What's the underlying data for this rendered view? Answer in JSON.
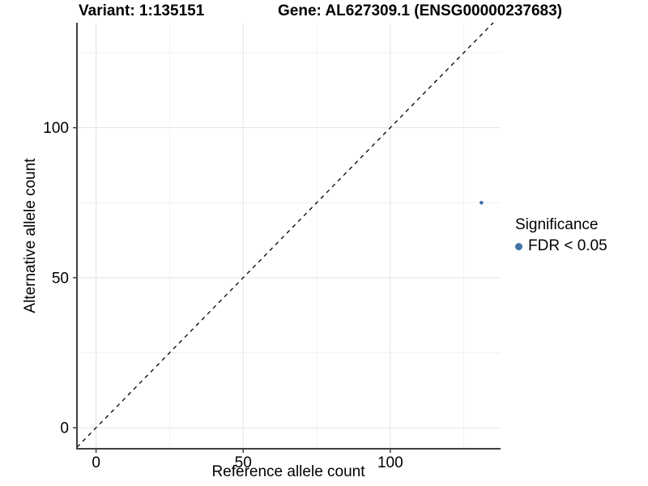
{
  "chart_data": {
    "type": "scatter",
    "titles": {
      "variant": "Variant: 1:135151",
      "gene": "Gene: AL627309.1 (ENSG00000237683)"
    },
    "xlabel": "Reference allele count",
    "ylabel": "Alternative allele count",
    "xlim": [
      -6.5,
      137.5
    ],
    "ylim": [
      -7,
      135
    ],
    "x_ticks": {
      "major": [
        0,
        50,
        100
      ],
      "minor": [
        25,
        75,
        125
      ]
    },
    "y_ticks": {
      "major": [
        0,
        50,
        100
      ],
      "minor": [
        25,
        75,
        125
      ]
    },
    "points": [
      {
        "x": 131,
        "y": 75,
        "series": "FDR < 0.05"
      }
    ],
    "identity_line": {
      "slope": 1,
      "intercept": 0,
      "style": "dashed",
      "color": "#000000"
    },
    "legend": {
      "position": "right",
      "title": "Significance",
      "items": [
        {
          "label": "FDR < 0.05",
          "marker": "circle",
          "color": "#4073a6"
        }
      ]
    },
    "grid": true,
    "colors": {
      "point": "#4073a6",
      "axis": "#404040",
      "tick_label": "#000000",
      "grid_major": "#e3e3e3",
      "grid_minor": "#f0f0f0",
      "background": "#ffffff"
    }
  }
}
